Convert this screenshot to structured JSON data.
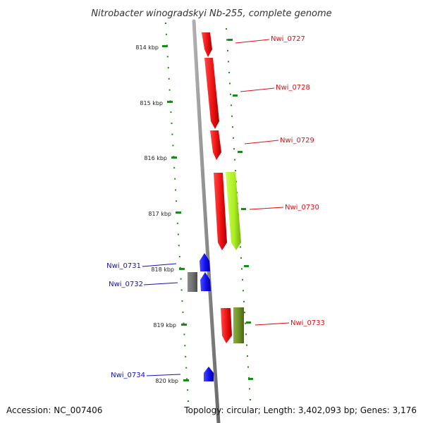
{
  "title": "Nitrobacter winogradskyi Nb-255, complete genome",
  "footer": {
    "accession": "Accession: NC_007406",
    "stats": "Topology: circular; Length: 3,402,093 bp; Genes: 3,176"
  },
  "colors": {
    "backbone": "#8c8c8c",
    "tick": "#1a8a1a",
    "forward_gene": "#ee1111",
    "forward_label": "#dd1111",
    "reverse_gene": "#1111ee",
    "reverse_label": "#1111bb",
    "other_gene": "#707070",
    "light_green_gene": "#aaee22",
    "olive_gene": "#6b8e23"
  },
  "scale": {
    "unit": "kbp",
    "labels": [
      "814 kbp",
      "815 kbp",
      "816 kbp",
      "817 kbp",
      "818 kbp",
      "819 kbp",
      "820 kbp"
    ]
  },
  "genes": [
    {
      "id": "Nwi_0727",
      "label": "Nwi_0727",
      "strand": "forward"
    },
    {
      "id": "Nwi_0728",
      "label": "Nwi_0728",
      "strand": "forward"
    },
    {
      "id": "Nwi_0729",
      "label": "Nwi_0729",
      "strand": "forward"
    },
    {
      "id": "Nwi_0730",
      "label": "Nwi_0730",
      "strand": "forward"
    },
    {
      "id": "Nwi_0731",
      "label": "Nwi_0731",
      "strand": "reverse"
    },
    {
      "id": "Nwi_0732",
      "label": "Nwi_0732",
      "strand": "reverse"
    },
    {
      "id": "Nwi_0733",
      "label": "Nwi_0733",
      "strand": "forward"
    },
    {
      "id": "Nwi_0734",
      "label": "Nwi_0734",
      "strand": "reverse"
    }
  ]
}
